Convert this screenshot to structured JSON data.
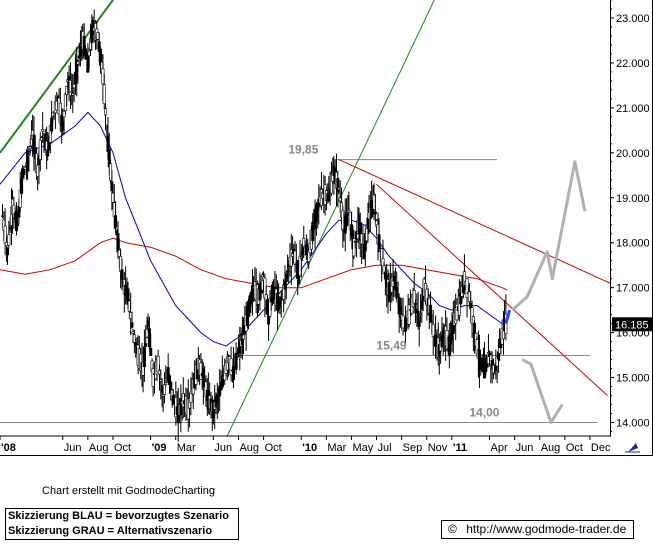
{
  "chart_data": {
    "type": "candlestick",
    "title": "",
    "legend_header": "",
    "xlabel": "",
    "ylabel": "",
    "ylim": [
      13.7,
      23.4
    ],
    "y_ticks": [
      14.0,
      15.0,
      16.0,
      17.0,
      18.0,
      19.0,
      20.0,
      21.0,
      22.0,
      23.0
    ],
    "y_tick_labels": [
      "14.000",
      "15.000",
      "16.000",
      "17.000",
      "18.000",
      "19.000",
      "20.000",
      "21.000",
      "22.000",
      "23.000"
    ],
    "x_tick_labels": [
      {
        "label": "'08",
        "bold": true,
        "x": 0.0
      },
      {
        "label": "Jun",
        "bold": false,
        "x": 5.0
      },
      {
        "label": "Aug",
        "bold": false,
        "x": 7.0
      },
      {
        "label": "Oct",
        "bold": false,
        "x": 9.0
      },
      {
        "label": "'09",
        "bold": true,
        "x": 12.0
      },
      {
        "label": "Mar",
        "bold": false,
        "x": 14.0
      },
      {
        "label": "Jun",
        "bold": false,
        "x": 17.0
      },
      {
        "label": "Aug",
        "bold": false,
        "x": 19.0
      },
      {
        "label": "Oct",
        "bold": false,
        "x": 21.0
      },
      {
        "label": "'10",
        "bold": true,
        "x": 24.0
      },
      {
        "label": "Mar",
        "bold": false,
        "x": 26.0
      },
      {
        "label": "May",
        "bold": false,
        "x": 28.0
      },
      {
        "label": "Jul",
        "bold": false,
        "x": 30.0
      },
      {
        "label": "Sep",
        "bold": false,
        "x": 32.0
      },
      {
        "label": "Nov",
        "bold": false,
        "x": 34.0
      },
      {
        "label": "'11",
        "bold": true,
        "x": 36.0
      },
      {
        "label": "Apr",
        "bold": false,
        "x": 39.0
      },
      {
        "label": "Jun",
        "bold": false,
        "x": 41.0
      },
      {
        "label": "Aug",
        "bold": false,
        "x": 43.0
      },
      {
        "label": "Oct",
        "bold": false,
        "x": 45.0
      },
      {
        "label": "Dec",
        "bold": false,
        "x": 47.0
      }
    ],
    "xlim": [
      0,
      48.6
    ],
    "last_price": "16.185",
    "price_path": [
      [
        0.2,
        18.6
      ],
      [
        0.6,
        17.8
      ],
      [
        1.0,
        18.8
      ],
      [
        1.4,
        18.4
      ],
      [
        1.8,
        19.5
      ],
      [
        2.2,
        19.8
      ],
      [
        2.6,
        20.4
      ],
      [
        3.0,
        19.6
      ],
      [
        3.4,
        20.5
      ],
      [
        3.8,
        20.0
      ],
      [
        4.2,
        20.8
      ],
      [
        4.6,
        21.2
      ],
      [
        5.0,
        20.6
      ],
      [
        5.4,
        21.6
      ],
      [
        5.8,
        21.3
      ],
      [
        6.2,
        22.0
      ],
      [
        6.6,
        22.5
      ],
      [
        7.0,
        22.0
      ],
      [
        7.4,
        22.8
      ],
      [
        7.8,
        22.6
      ],
      [
        8.2,
        21.7
      ],
      [
        8.6,
        20.2
      ],
      [
        9.0,
        19.0
      ],
      [
        9.4,
        18.0
      ],
      [
        9.8,
        17.1
      ],
      [
        10.2,
        16.8
      ],
      [
        10.6,
        16.0
      ],
      [
        11.0,
        15.5
      ],
      [
        11.4,
        15.2
      ],
      [
        11.8,
        16.2
      ],
      [
        12.2,
        15.0
      ],
      [
        12.6,
        15.3
      ],
      [
        13.0,
        14.6
      ],
      [
        13.4,
        15.1
      ],
      [
        13.8,
        14.5
      ],
      [
        14.2,
        14.2
      ],
      [
        14.6,
        14.5
      ],
      [
        15.0,
        14.3
      ],
      [
        15.4,
        14.8
      ],
      [
        15.8,
        15.3
      ],
      [
        16.2,
        15.0
      ],
      [
        16.6,
        14.5
      ],
      [
        17.0,
        14.3
      ],
      [
        17.4,
        14.6
      ],
      [
        17.8,
        15.0
      ],
      [
        18.2,
        15.4
      ],
      [
        18.6,
        15.1
      ],
      [
        19.0,
        15.6
      ],
      [
        19.4,
        15.9
      ],
      [
        19.8,
        16.5
      ],
      [
        20.2,
        17.0
      ],
      [
        20.6,
        16.8
      ],
      [
        21.0,
        17.2
      ],
      [
        21.4,
        16.4
      ],
      [
        21.8,
        17.0
      ],
      [
        22.2,
        16.6
      ],
      [
        22.6,
        16.9
      ],
      [
        23.0,
        17.5
      ],
      [
        23.4,
        17.8
      ],
      [
        23.8,
        17.3
      ],
      [
        24.2,
        18.0
      ],
      [
        24.6,
        17.7
      ],
      [
        25.0,
        18.4
      ],
      [
        25.4,
        18.9
      ],
      [
        25.8,
        19.1
      ],
      [
        26.2,
        19.0
      ],
      [
        26.6,
        19.6
      ],
      [
        27.0,
        19.2
      ],
      [
        27.4,
        18.3
      ],
      [
        27.8,
        18.7
      ],
      [
        28.2,
        17.9
      ],
      [
        28.6,
        18.4
      ],
      [
        29.0,
        17.8
      ],
      [
        29.4,
        18.6
      ],
      [
        29.8,
        18.9
      ],
      [
        30.2,
        18.0
      ],
      [
        30.6,
        17.4
      ],
      [
        31.0,
        16.9
      ],
      [
        31.4,
        17.2
      ],
      [
        31.8,
        16.6
      ],
      [
        32.2,
        16.1
      ],
      [
        32.6,
        16.4
      ],
      [
        33.0,
        16.8
      ],
      [
        33.4,
        16.2
      ],
      [
        33.8,
        17.0
      ],
      [
        34.2,
        16.6
      ],
      [
        34.6,
        15.9
      ],
      [
        35.0,
        15.6
      ],
      [
        35.4,
        16.0
      ],
      [
        35.8,
        15.7
      ],
      [
        36.2,
        16.3
      ],
      [
        36.6,
        16.6
      ],
      [
        37.0,
        17.2
      ],
      [
        37.4,
        16.8
      ],
      [
        37.8,
        16.0
      ],
      [
        38.2,
        15.4
      ],
      [
        38.6,
        15.2
      ],
      [
        39.0,
        15.5
      ],
      [
        39.4,
        15.1
      ],
      [
        39.8,
        15.6
      ],
      [
        40.2,
        16.2
      ],
      [
        40.4,
        16.185
      ]
    ],
    "moving_averages": [
      {
        "color": "#0000cc",
        "points": [
          [
            0.0,
            19.3
          ],
          [
            2.0,
            20.0
          ],
          [
            4.0,
            20.2
          ],
          [
            6.0,
            20.6
          ],
          [
            7.0,
            20.9
          ],
          [
            8.0,
            20.6
          ],
          [
            9.0,
            20.0
          ],
          [
            10.0,
            19.0
          ],
          [
            11.0,
            18.3
          ],
          [
            12.0,
            17.6
          ],
          [
            13.0,
            17.1
          ],
          [
            14.0,
            16.6
          ],
          [
            15.0,
            16.3
          ],
          [
            16.0,
            16.0
          ],
          [
            17.0,
            15.8
          ],
          [
            18.0,
            15.7
          ],
          [
            19.0,
            15.9
          ],
          [
            20.0,
            16.2
          ],
          [
            21.0,
            16.5
          ],
          [
            22.0,
            16.8
          ],
          [
            23.0,
            17.1
          ],
          [
            24.0,
            17.4
          ],
          [
            25.0,
            17.8
          ],
          [
            26.0,
            18.2
          ],
          [
            27.0,
            18.5
          ],
          [
            28.0,
            18.5
          ],
          [
            29.0,
            18.4
          ],
          [
            30.0,
            18.1
          ],
          [
            31.0,
            17.7
          ],
          [
            32.0,
            17.4
          ],
          [
            33.0,
            17.1
          ],
          [
            34.0,
            16.9
          ],
          [
            35.0,
            16.6
          ],
          [
            36.0,
            16.5
          ],
          [
            37.0,
            16.6
          ],
          [
            38.0,
            16.6
          ],
          [
            39.0,
            16.4
          ],
          [
            40.0,
            16.2
          ],
          [
            40.4,
            16.1
          ]
        ]
      },
      {
        "color": "#cc0000",
        "points": [
          [
            0.0,
            17.4
          ],
          [
            2.0,
            17.3
          ],
          [
            4.0,
            17.4
          ],
          [
            6.0,
            17.6
          ],
          [
            8.0,
            18.0
          ],
          [
            9.0,
            18.1
          ],
          [
            10.0,
            18.0
          ],
          [
            12.0,
            17.9
          ],
          [
            14.0,
            17.7
          ],
          [
            16.0,
            17.4
          ],
          [
            18.0,
            17.2
          ],
          [
            20.0,
            17.1
          ],
          [
            22.0,
            17.0
          ],
          [
            24.0,
            17.0
          ],
          [
            26.0,
            17.2
          ],
          [
            28.0,
            17.4
          ],
          [
            30.0,
            17.5
          ],
          [
            32.0,
            17.5
          ],
          [
            34.0,
            17.4
          ],
          [
            36.0,
            17.3
          ],
          [
            38.0,
            17.2
          ],
          [
            40.0,
            17.0
          ],
          [
            40.4,
            16.95
          ]
        ]
      }
    ],
    "horizontal_levels": [
      {
        "value": 19.85,
        "label": "19,85",
        "x_start": 26.8,
        "x_end": 39.6,
        "color": "#888888"
      },
      {
        "value": 15.49,
        "label": "15,49",
        "x_start": 19.0,
        "x_end": 47.0,
        "color": "#888888"
      },
      {
        "value": 14.0,
        "label": "14,00",
        "x_start": 0.0,
        "x_end": 47.6,
        "color": "#888888"
      }
    ],
    "trend_lines": [
      {
        "color": "#228822",
        "width": 2,
        "from": [
          0.0,
          20.0
        ],
        "to": [
          9.0,
          23.4
        ]
      },
      {
        "color": "#228822",
        "width": 1,
        "from": [
          18.1,
          13.7
        ],
        "to": [
          34.6,
          23.4
        ]
      },
      {
        "color": "#cc0000",
        "width": 1,
        "from": [
          27.0,
          19.85
        ],
        "to": [
          48.6,
          17.1
        ]
      },
      {
        "color": "#cc0000",
        "width": 1,
        "from": [
          30.0,
          19.3
        ],
        "to": [
          48.4,
          14.6
        ]
      }
    ],
    "scenario_blue": [
      [
        40.3,
        16.2
      ],
      [
        40.6,
        16.5
      ]
    ],
    "scenario_grey_up": [
      [
        40.8,
        16.5
      ],
      [
        42.0,
        16.8
      ],
      [
        43.6,
        17.8
      ],
      [
        44.0,
        17.2
      ],
      [
        45.8,
        19.8
      ],
      [
        46.6,
        18.7
      ]
    ],
    "scenario_grey_down": [
      [
        41.6,
        15.4
      ],
      [
        42.3,
        15.3
      ],
      [
        43.9,
        14.0
      ],
      [
        44.8,
        14.4
      ]
    ]
  },
  "footer": {
    "credit": "Chart erstellt mit GodmodeCharting",
    "legend_blue": "Skizzierung BLAU = bevorzugtes Szenario",
    "legend_grey": "Skizzierung GRAU = Alternativszenario",
    "copyright_symbol": "©",
    "url": "http://www.godmode-trader.de"
  },
  "icons": {
    "corner": "chart-arrow-icon"
  }
}
